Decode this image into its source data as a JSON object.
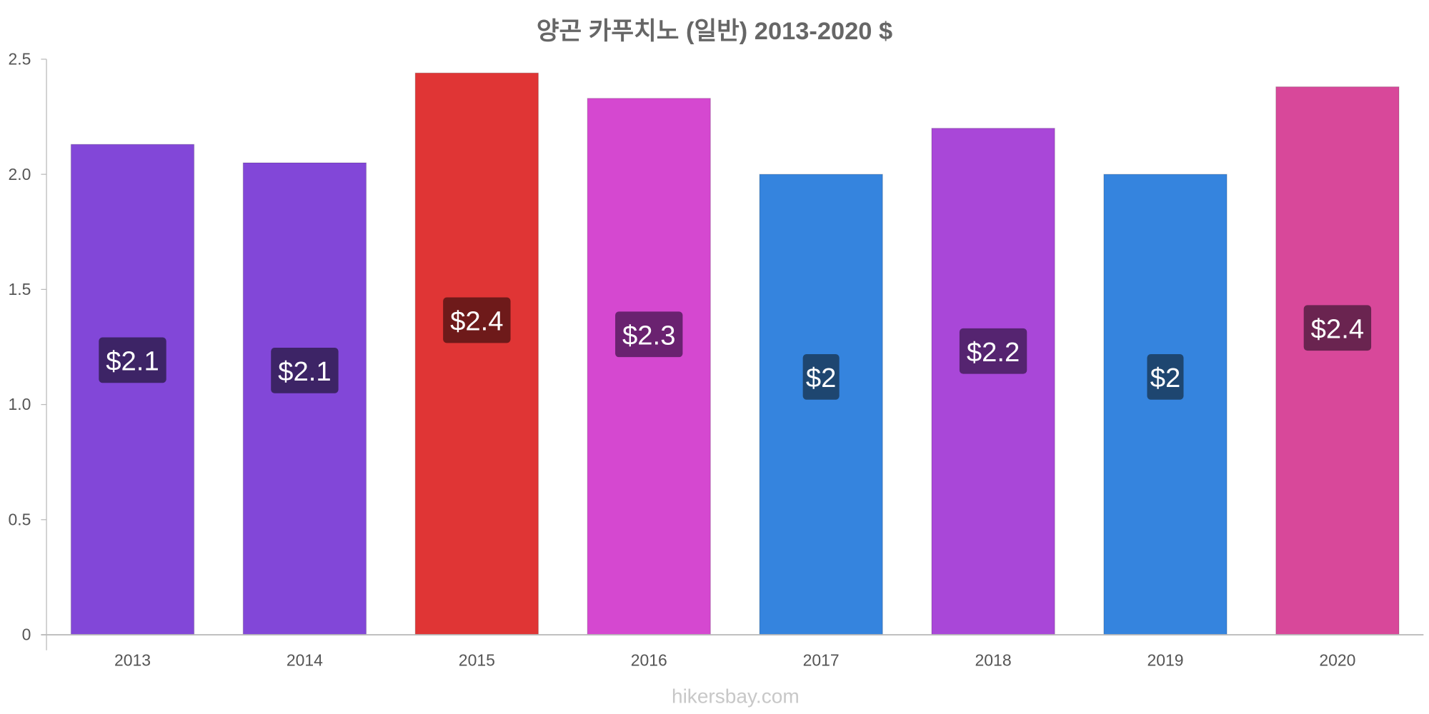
{
  "chart_data": {
    "type": "bar",
    "title": "양곤 카푸치노 (일반) 2013-2020 $",
    "xlabel": "",
    "ylabel": "",
    "categories": [
      "2013",
      "2014",
      "2015",
      "2016",
      "2017",
      "2018",
      "2019",
      "2020"
    ],
    "values": [
      2.13,
      2.05,
      2.44,
      2.33,
      2.0,
      2.2,
      2.0,
      2.38
    ],
    "data_labels": [
      "$2.1",
      "$2.1",
      "$2.4",
      "$2.3",
      "$2",
      "$2.2",
      "$2",
      "$2.4"
    ],
    "colors": [
      "#8247d8",
      "#8247d8",
      "#e03535",
      "#d548d0",
      "#3584de",
      "#a947d8",
      "#3584de",
      "#d8489a"
    ],
    "label_colors": [
      "#3d2466",
      "#3d2466",
      "#6e1a1a",
      "#6a2270",
      "#1e4670",
      "#552470",
      "#1e4670",
      "#6a2450"
    ],
    "ylim": [
      0,
      2.5
    ],
    "yticks": [
      0,
      0.5,
      1.0,
      1.5,
      2.0,
      2.5
    ],
    "ytick_labels": [
      "0",
      "0.5",
      "1.0",
      "1.5",
      "2.0",
      "2.5"
    ],
    "grid": false,
    "legend": "none"
  },
  "watermark": "hikersbay.com"
}
